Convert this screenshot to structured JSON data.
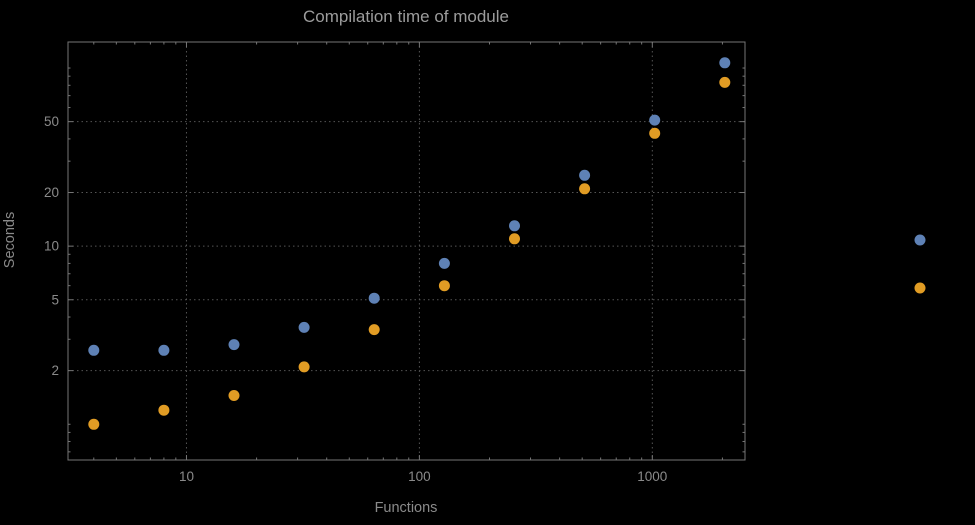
{
  "window": {
    "background": "#000000"
  },
  "chart_data": {
    "type": "scatter",
    "title": "Compilation time of module",
    "xlabel": "Functions",
    "ylabel": "Seconds",
    "x_scale": "log",
    "y_scale": "log",
    "grid": true,
    "grid_style": "dotted",
    "xlim": [
      3.1,
      2500
    ],
    "ylim": [
      0.63,
      140
    ],
    "x_ticks": [
      "10",
      "100",
      "1000"
    ],
    "x_tick_values": [
      10,
      100,
      1000
    ],
    "y_ticks": [
      "2",
      "5",
      "10",
      "20",
      "50"
    ],
    "y_tick_values": [
      2,
      5,
      10,
      20,
      50
    ],
    "x": [
      4,
      8,
      16,
      32,
      64,
      128,
      256,
      512,
      1024,
      2048
    ],
    "series": [
      {
        "name": "series-blue",
        "color": "#5e81b5",
        "values": [
          2.6,
          2.6,
          2.8,
          3.5,
          5.1,
          8,
          13,
          25,
          51,
          107
        ]
      },
      {
        "name": "series-orange",
        "color": "#e19c24",
        "values": [
          1.0,
          1.2,
          1.45,
          2.1,
          3.4,
          6,
          11,
          21,
          43,
          83
        ]
      }
    ],
    "legend": {
      "position": "right-outside",
      "entries": [
        {
          "series": "series-blue",
          "label": ""
        },
        {
          "series": "series-orange",
          "label": ""
        }
      ]
    },
    "colors": {
      "frame": "#767676",
      "grid": "#555555",
      "title": "#9c9c9c",
      "tick_label": "#8a8a8a",
      "axis_label": "#8a8a8a"
    }
  }
}
